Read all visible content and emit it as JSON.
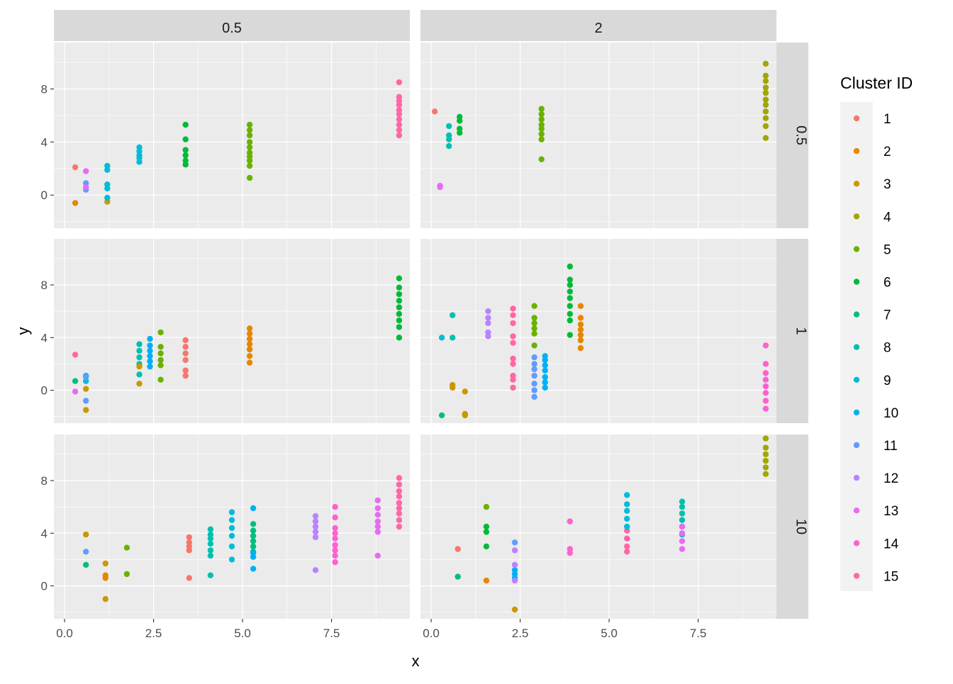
{
  "chart_data": {
    "type": "scatter",
    "title": "",
    "xlabel": "x",
    "ylabel": "y",
    "xlim": [
      -0.3,
      9.7
    ],
    "ylim": [
      -2.5,
      11.5
    ],
    "x_ticks": [
      0,
      2.5,
      5,
      7.5
    ],
    "x_tick_labels": [
      "0.0",
      "2.5",
      "5.0",
      "7.5"
    ],
    "y_ticks": [
      0,
      4,
      8
    ],
    "y_tick_labels": [
      "0",
      "4",
      "8"
    ],
    "grid": true,
    "legend": {
      "title": "Cluster ID",
      "position": "right",
      "entries": [
        {
          "label": "1",
          "color": "#F8766D"
        },
        {
          "label": "2",
          "color": "#E58700"
        },
        {
          "label": "3",
          "color": "#C99800"
        },
        {
          "label": "4",
          "color": "#A3A500"
        },
        {
          "label": "5",
          "color": "#6BB100"
        },
        {
          "label": "6",
          "color": "#00BA38"
        },
        {
          "label": "7",
          "color": "#00BF7D"
        },
        {
          "label": "8",
          "color": "#00C0AF"
        },
        {
          "label": "9",
          "color": "#00BCD8"
        },
        {
          "label": "10",
          "color": "#00B0F6"
        },
        {
          "label": "11",
          "color": "#619CFF"
        },
        {
          "label": "12",
          "color": "#B983FF"
        },
        {
          "label": "13",
          "color": "#E76BF3"
        },
        {
          "label": "14",
          "color": "#FD61D1"
        },
        {
          "label": "15",
          "color": "#FF67A4"
        }
      ]
    },
    "facet_cols": [
      "0.5",
      "2"
    ],
    "facet_rows": [
      "0.5",
      "1",
      "10"
    ],
    "panels": [
      {
        "col": "0.5",
        "row": "0.5",
        "groups": [
          {
            "cluster": 1,
            "x": 0.3,
            "y": [
              2.1
            ]
          },
          {
            "cluster": 2,
            "x": 0.3,
            "y": [
              -0.6
            ]
          },
          {
            "cluster": 11,
            "x": 0.6,
            "y": [
              0.4,
              0.9
            ]
          },
          {
            "cluster": 13,
            "x": 0.6,
            "y": [
              0.6,
              1.8
            ]
          },
          {
            "cluster": 3,
            "x": 1.2,
            "y": [
              -0.5
            ]
          },
          {
            "cluster": 9,
            "x": 1.2,
            "y": [
              -0.2,
              0.5,
              0.8,
              1.9,
              2.2
            ]
          },
          {
            "cluster": 9,
            "x": 2.1,
            "y": [
              2.5,
              2.8,
              3.0,
              3.3,
              3.6
            ]
          },
          {
            "cluster": 6,
            "x": 3.4,
            "y": [
              2.3,
              2.6,
              3.0,
              3.4,
              4.2,
              5.3
            ]
          },
          {
            "cluster": 5,
            "x": 5.2,
            "y": [
              1.3,
              2.2,
              2.6,
              2.9,
              3.2,
              3.6,
              4.0,
              4.5,
              4.9,
              5.3
            ]
          },
          {
            "cluster": 15,
            "x": 9.4,
            "y": [
              4.5,
              4.9,
              5.3,
              5.7,
              6.1,
              6.4,
              6.8,
              7.1,
              7.4,
              8.5
            ]
          }
        ]
      },
      {
        "col": "2",
        "row": "0.5",
        "groups": [
          {
            "cluster": 1,
            "x": 0.1,
            "y": [
              6.3
            ]
          },
          {
            "cluster": 13,
            "x": 0.25,
            "y": [
              0.6,
              0.7
            ]
          },
          {
            "cluster": 8,
            "x": 0.5,
            "y": [
              3.7,
              4.2,
              4.5,
              5.2
            ]
          },
          {
            "cluster": 6,
            "x": 0.8,
            "y": [
              4.7,
              5.0,
              5.6,
              5.9
            ]
          },
          {
            "cluster": 5,
            "x": 3.1,
            "y": [
              2.7,
              4.2,
              4.6,
              5.0,
              5.3,
              5.7,
              6.1,
              6.5
            ]
          },
          {
            "cluster": 4,
            "x": 9.4,
            "y": [
              4.3,
              5.2,
              5.8,
              6.3,
              6.8,
              7.2,
              7.7,
              8.1,
              8.6,
              9.0,
              9.9
            ]
          }
        ]
      },
      {
        "col": "0.5",
        "row": "1",
        "groups": [
          {
            "cluster": 15,
            "x": 0.3,
            "y": [
              2.7
            ]
          },
          {
            "cluster": 7,
            "x": 0.3,
            "y": [
              0.7
            ]
          },
          {
            "cluster": 13,
            "x": 0.3,
            "y": [
              -0.1
            ]
          },
          {
            "cluster": 9,
            "x": 0.6,
            "y": [
              0.7,
              1.1
            ]
          },
          {
            "cluster": 11,
            "x": 0.6,
            "y": [
              -0.8,
              1.0
            ]
          },
          {
            "cluster": 3,
            "x": 0.6,
            "y": [
              -1.5,
              0.1
            ]
          },
          {
            "cluster": 8,
            "x": 2.1,
            "y": [
              1.2,
              2.0,
              2.5,
              3.0,
              3.5
            ]
          },
          {
            "cluster": 3,
            "x": 2.1,
            "y": [
              0.5,
              1.8
            ]
          },
          {
            "cluster": 10,
            "x": 2.4,
            "y": [
              1.8,
              2.2,
              2.6,
              3.0,
              3.4,
              3.9
            ]
          },
          {
            "cluster": 5,
            "x": 2.7,
            "y": [
              0.8,
              1.9,
              2.3,
              2.8,
              3.3,
              4.4
            ]
          },
          {
            "cluster": 1,
            "x": 3.4,
            "y": [
              1.1,
              1.5,
              2.3,
              2.8,
              3.3,
              3.8
            ]
          },
          {
            "cluster": 2,
            "x": 5.2,
            "y": [
              2.1,
              2.6,
              3.1,
              3.5,
              3.9,
              4.3,
              4.7
            ]
          },
          {
            "cluster": 6,
            "x": 9.4,
            "y": [
              4.0,
              4.8,
              5.3,
              5.8,
              6.3,
              6.8,
              7.3,
              7.8,
              8.5
            ]
          }
        ]
      },
      {
        "col": "2",
        "row": "1",
        "groups": [
          {
            "cluster": 7,
            "x": 0.3,
            "y": [
              -1.9
            ]
          },
          {
            "cluster": 9,
            "x": 0.3,
            "y": [
              4.0
            ]
          },
          {
            "cluster": 8,
            "x": 0.6,
            "y": [
              4.0,
              5.7
            ]
          },
          {
            "cluster": 3,
            "x": 0.6,
            "y": [
              0.2,
              0.4
            ]
          },
          {
            "cluster": 3,
            "x": 0.95,
            "y": [
              -1.9,
              -1.8,
              -0.1
            ]
          },
          {
            "cluster": 12,
            "x": 1.6,
            "y": [
              4.1,
              4.4,
              5.1,
              5.5,
              6.0
            ]
          },
          {
            "cluster": 15,
            "x": 2.3,
            "y": [
              0.2,
              0.8,
              1.1,
              2.0,
              2.4,
              3.6,
              4.1,
              5.1,
              5.7,
              6.2
            ]
          },
          {
            "cluster": 5,
            "x": 2.9,
            "y": [
              3.4,
              4.3,
              4.7,
              5.1,
              5.5,
              6.4
            ]
          },
          {
            "cluster": 11,
            "x": 2.9,
            "y": [
              -0.5,
              0,
              0.5,
              1.1,
              1.6,
              2.0,
              2.5
            ]
          },
          {
            "cluster": 10,
            "x": 3.2,
            "y": [
              0.2,
              0.6,
              1.0,
              1.5,
              1.9,
              2.3,
              2.6
            ]
          },
          {
            "cluster": 6,
            "x": 3.9,
            "y": [
              4.2,
              5.3,
              5.8,
              6.4,
              7.0,
              7.5,
              8.0,
              8.4,
              9.4
            ]
          },
          {
            "cluster": 2,
            "x": 4.2,
            "y": [
              3.2,
              3.8,
              4.2,
              4.6,
              5.0,
              5.5,
              6.4
            ]
          },
          {
            "cluster": 14,
            "x": 9.4,
            "y": [
              -1.4,
              -0.8,
              -0.2,
              0.3,
              0.8,
              1.3,
              2.0,
              3.4
            ]
          }
        ]
      },
      {
        "col": "0.5",
        "row": "10",
        "groups": [
          {
            "cluster": 3,
            "x": 0.6,
            "y": [
              3.9
            ]
          },
          {
            "cluster": 11,
            "x": 0.6,
            "y": [
              2.6
            ]
          },
          {
            "cluster": 7,
            "x": 0.6,
            "y": [
              1.6
            ]
          },
          {
            "cluster": 2,
            "x": 1.15,
            "y": [
              0.6,
              0.8
            ]
          },
          {
            "cluster": 3,
            "x": 1.15,
            "y": [
              1.7,
              -1.0
            ]
          },
          {
            "cluster": 5,
            "x": 1.75,
            "y": [
              0.9,
              2.9
            ]
          },
          {
            "cluster": 1,
            "x": 3.5,
            "y": [
              0.6,
              2.7,
              3.0,
              3.3,
              3.7
            ]
          },
          {
            "cluster": 8,
            "x": 4.1,
            "y": [
              0.8,
              2.3,
              2.7,
              3.2,
              3.6,
              3.9,
              4.3
            ]
          },
          {
            "cluster": 9,
            "x": 4.7,
            "y": [
              2.0,
              3.0,
              3.8,
              4.4,
              5.0,
              5.6
            ]
          },
          {
            "cluster": 7,
            "x": 5.3,
            "y": [
              2.6,
              3.0,
              3.4,
              3.8,
              4.2,
              4.7
            ]
          },
          {
            "cluster": 10,
            "x": 5.3,
            "y": [
              1.3,
              2.2,
              2.5,
              5.9
            ]
          },
          {
            "cluster": 12,
            "x": 7.05,
            "y": [
              1.2,
              3.7,
              4.1,
              4.5,
              4.9,
              5.3
            ]
          },
          {
            "cluster": 14,
            "x": 7.6,
            "y": [
              1.8,
              2.3,
              2.7,
              3.1,
              3.6,
              4.0,
              4.4,
              5.2,
              6.0
            ]
          },
          {
            "cluster": 13,
            "x": 8.8,
            "y": [
              2.3,
              4.1,
              4.5,
              4.9,
              5.4,
              5.9,
              6.5
            ]
          },
          {
            "cluster": 15,
            "x": 9.4,
            "y": [
              4.5,
              5.0,
              5.5,
              5.9,
              6.3,
              6.8,
              7.2,
              7.7,
              8.2
            ]
          }
        ]
      },
      {
        "col": "2",
        "row": "10",
        "groups": [
          {
            "cluster": 1,
            "x": 0.75,
            "y": [
              2.8
            ]
          },
          {
            "cluster": 7,
            "x": 0.75,
            "y": [
              0.7
            ]
          },
          {
            "cluster": 2,
            "x": 1.55,
            "y": [
              0.4
            ]
          },
          {
            "cluster": 6,
            "x": 1.55,
            "y": [
              3.0,
              4.1,
              4.5
            ]
          },
          {
            "cluster": 5,
            "x": 1.55,
            "y": [
              6.0
            ]
          },
          {
            "cluster": 10,
            "x": 2.35,
            "y": [
              0.6,
              0.9,
              1.2
            ]
          },
          {
            "cluster": 12,
            "x": 2.35,
            "y": [
              0.4,
              1.6,
              2.7
            ]
          },
          {
            "cluster": 11,
            "x": 2.35,
            "y": [
              3.3
            ]
          },
          {
            "cluster": 3,
            "x": 2.35,
            "y": [
              -1.8
            ]
          },
          {
            "cluster": 14,
            "x": 3.9,
            "y": [
              2.5,
              2.8,
              4.9
            ]
          },
          {
            "cluster": 15,
            "x": 5.5,
            "y": [
              2.6,
              3.0,
              3.6,
              4.2
            ]
          },
          {
            "cluster": 9,
            "x": 5.5,
            "y": [
              4.5,
              5.1,
              5.7,
              6.2,
              6.9
            ]
          },
          {
            "cluster": 8,
            "x": 7.05,
            "y": [
              3.9,
              4.5,
              5.0,
              5.5,
              6.0,
              6.4
            ]
          },
          {
            "cluster": 13,
            "x": 7.05,
            "y": [
              2.8,
              3.4,
              4.0,
              4.5
            ]
          },
          {
            "cluster": 4,
            "x": 9.4,
            "y": [
              8.5,
              9.0,
              9.5,
              10.0,
              10.5,
              11.2
            ]
          }
        ]
      }
    ]
  }
}
